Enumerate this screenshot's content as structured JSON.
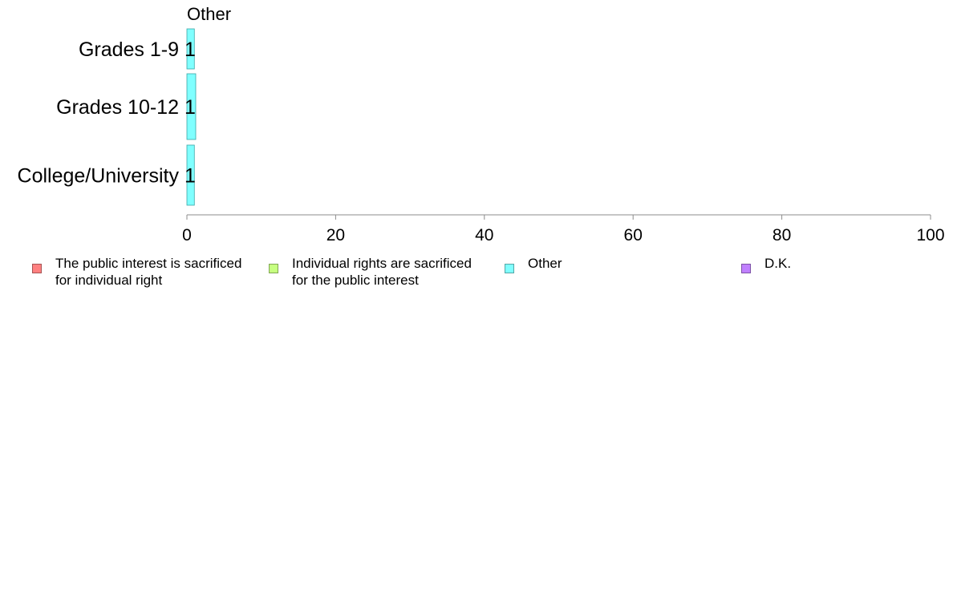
{
  "chart_data": {
    "type": "bar",
    "orientation": "horizontal",
    "panel_title": "Other",
    "categories": [
      "Grades 1-9",
      "Grades 10-12",
      "College/University"
    ],
    "series": [
      {
        "name": "Other",
        "values": [
          1,
          1,
          1
        ],
        "labels": [
          "1",
          "1",
          "1"
        ],
        "color": "#80ffff"
      }
    ],
    "xlim": [
      0,
      100
    ],
    "xticks": [
      0,
      20,
      40,
      60,
      80,
      100
    ],
    "grid": false,
    "legend_position": "bottom",
    "legend": [
      {
        "label": "The public interest is sacrificed\nfor individual right",
        "color": "#ff8080"
      },
      {
        "label": "Individual rights are sacrificed\nfor the public interest",
        "color": "#c6ff80"
      },
      {
        "label": "Other",
        "color": "#80ffff"
      },
      {
        "label": "D.K.",
        "color": "#c080ff"
      }
    ]
  }
}
